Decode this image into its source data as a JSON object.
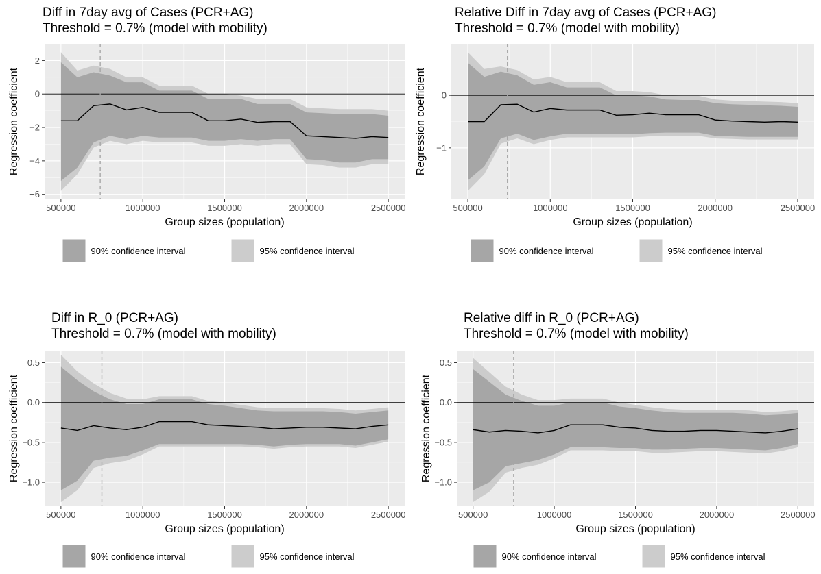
{
  "legend_labels": [
    "90% confidence interval",
    "95% confidence interval"
  ],
  "colors": {
    "panel_bg": "#ebebeb",
    "grid_major": "#ffffff",
    "ci95": "#cccccc",
    "ci90": "#a6a6a6",
    "line": "#000000",
    "zero_line": "#000000",
    "threshold_line": "#a6a6a6",
    "axis_text": "#4d4d4d"
  },
  "chart_data": [
    {
      "type": "line",
      "title": [
        "Diff in 7day avg of Cases (PCR+AG)",
        "Threshold = 0.7% (model with mobility)"
      ],
      "xlabel": "Group sizes (population)",
      "ylabel": "Regression coefficient",
      "x": [
        500000,
        600000,
        700000,
        800000,
        900000,
        1000000,
        1100000,
        1200000,
        1300000,
        1400000,
        1500000,
        1600000,
        1700000,
        1800000,
        1900000,
        2000000,
        2100000,
        2200000,
        2300000,
        2400000,
        2500000
      ],
      "series": [
        {
          "name": "estimate",
          "values": [
            -1.6,
            -1.6,
            -0.7,
            -0.6,
            -0.95,
            -0.8,
            -1.1,
            -1.1,
            -1.1,
            -1.6,
            -1.6,
            -1.5,
            -1.7,
            -1.65,
            -1.65,
            -2.5,
            -2.55,
            -2.6,
            -2.65,
            -2.55,
            -2.6
          ]
        },
        {
          "name": "ci90_low",
          "values": [
            -5.2,
            -4.4,
            -2.9,
            -2.5,
            -2.7,
            -2.5,
            -2.6,
            -2.6,
            -2.6,
            -2.8,
            -2.8,
            -2.7,
            -2.8,
            -2.7,
            -2.7,
            -3.9,
            -3.95,
            -4.1,
            -4.1,
            -3.9,
            -3.9
          ]
        },
        {
          "name": "ci90_high",
          "values": [
            1.9,
            1.0,
            1.3,
            1.1,
            0.7,
            0.7,
            0.2,
            0.2,
            0.2,
            -0.3,
            -0.3,
            -0.3,
            -0.6,
            -0.6,
            -0.6,
            -1.1,
            -1.15,
            -1.2,
            -1.2,
            -1.2,
            -1.3
          ]
        },
        {
          "name": "ci95_low",
          "values": [
            -5.8,
            -4.8,
            -3.2,
            -2.8,
            -3.0,
            -2.8,
            -2.9,
            -2.9,
            -2.9,
            -3.1,
            -3.1,
            -3.0,
            -3.1,
            -3.0,
            -3.0,
            -4.2,
            -4.25,
            -4.4,
            -4.4,
            -4.2,
            -4.2
          ]
        },
        {
          "name": "ci95_high",
          "values": [
            2.5,
            1.4,
            1.7,
            1.5,
            1.0,
            1.0,
            0.5,
            0.5,
            0.5,
            0.0,
            0.0,
            -0.1,
            -0.3,
            -0.3,
            -0.3,
            -0.8,
            -0.85,
            -0.9,
            -0.9,
            -0.9,
            -1.0
          ]
        }
      ],
      "xlim": [
        400000,
        2600000
      ],
      "ylim": [
        -6.3,
        3.0
      ],
      "xticks": [
        500000,
        1000000,
        1500000,
        2000000,
        2500000
      ],
      "xtick_labels": [
        "500000",
        "1000000",
        "1500000",
        "2000000",
        "2500000"
      ],
      "yticks": [
        -6,
        -4,
        -2,
        0,
        2
      ],
      "ytick_labels": [
        "-6",
        "-4",
        "-2",
        "0",
        "2"
      ],
      "threshold_x": 740000,
      "zero_y": 0
    },
    {
      "type": "line",
      "title": [
        "Relative Diff in 7day avg of Cases (PCR+AG)",
        "Threshold = 0.7% (model with mobility)"
      ],
      "xlabel": "Group sizes (population)",
      "ylabel": "Regression coefficient",
      "x": [
        500000,
        600000,
        700000,
        800000,
        900000,
        1000000,
        1100000,
        1200000,
        1300000,
        1400000,
        1500000,
        1600000,
        1700000,
        1800000,
        1900000,
        2000000,
        2100000,
        2200000,
        2300000,
        2400000,
        2500000
      ],
      "series": [
        {
          "name": "estimate",
          "values": [
            -0.5,
            -0.5,
            -0.18,
            -0.17,
            -0.32,
            -0.25,
            -0.28,
            -0.28,
            -0.28,
            -0.38,
            -0.37,
            -0.34,
            -0.37,
            -0.37,
            -0.37,
            -0.47,
            -0.49,
            -0.5,
            -0.51,
            -0.5,
            -0.51
          ]
        },
        {
          "name": "ci90_low",
          "values": [
            -1.62,
            -1.35,
            -0.82,
            -0.73,
            -0.85,
            -0.78,
            -0.73,
            -0.73,
            -0.73,
            -0.74,
            -0.74,
            -0.72,
            -0.71,
            -0.71,
            -0.71,
            -0.77,
            -0.78,
            -0.79,
            -0.79,
            -0.79,
            -0.79
          ]
        },
        {
          "name": "ci90_high",
          "values": [
            0.62,
            0.35,
            0.45,
            0.38,
            0.2,
            0.25,
            0.15,
            0.15,
            0.15,
            0.0,
            0.0,
            -0.02,
            -0.08,
            -0.09,
            -0.09,
            -0.15,
            -0.17,
            -0.18,
            -0.19,
            -0.2,
            -0.22
          ]
        },
        {
          "name": "ci95_low",
          "values": [
            -1.82,
            -1.5,
            -0.92,
            -0.82,
            -0.93,
            -0.85,
            -0.8,
            -0.8,
            -0.8,
            -0.8,
            -0.8,
            -0.78,
            -0.77,
            -0.77,
            -0.77,
            -0.82,
            -0.83,
            -0.84,
            -0.84,
            -0.84,
            -0.84
          ]
        },
        {
          "name": "ci95_high",
          "values": [
            0.82,
            0.5,
            0.55,
            0.48,
            0.3,
            0.35,
            0.25,
            0.25,
            0.25,
            0.08,
            0.08,
            0.06,
            0.0,
            -0.01,
            -0.01,
            -0.08,
            -0.1,
            -0.11,
            -0.12,
            -0.13,
            -0.15
          ]
        }
      ],
      "xlim": [
        400000,
        2600000
      ],
      "ylim": [
        -1.98,
        0.98
      ],
      "xticks": [
        500000,
        1000000,
        1500000,
        2000000,
        2500000
      ],
      "xtick_labels": [
        "500000",
        "1000000",
        "1500000",
        "2000000",
        "2500000"
      ],
      "yticks": [
        -1,
        0
      ],
      "ytick_labels": [
        "-1",
        "0"
      ],
      "threshold_x": 740000,
      "zero_y": 0
    },
    {
      "type": "line",
      "title": [
        "Diff in R_0 (PCR+AG)",
        "Threshold = 0.7% (model with mobility)"
      ],
      "xlabel": "Group sizes (population)",
      "ylabel": "Regression coefficient",
      "x": [
        500000,
        600000,
        700000,
        800000,
        900000,
        1000000,
        1100000,
        1200000,
        1300000,
        1400000,
        1500000,
        1600000,
        1700000,
        1800000,
        1900000,
        2000000,
        2100000,
        2200000,
        2300000,
        2400000,
        2500000
      ],
      "series": [
        {
          "name": "estimate",
          "values": [
            -0.32,
            -0.35,
            -0.29,
            -0.32,
            -0.34,
            -0.31,
            -0.24,
            -0.24,
            -0.24,
            -0.28,
            -0.29,
            -0.3,
            -0.31,
            -0.33,
            -0.32,
            -0.31,
            -0.31,
            -0.32,
            -0.33,
            -0.3,
            -0.28
          ]
        },
        {
          "name": "ci90_low",
          "values": [
            -1.1,
            -0.98,
            -0.73,
            -0.69,
            -0.67,
            -0.6,
            -0.52,
            -0.52,
            -0.52,
            -0.52,
            -0.52,
            -0.52,
            -0.53,
            -0.55,
            -0.53,
            -0.52,
            -0.52,
            -0.52,
            -0.54,
            -0.5,
            -0.46
          ]
        },
        {
          "name": "ci90_high",
          "values": [
            0.45,
            0.28,
            0.14,
            0.04,
            -0.02,
            -0.02,
            0.04,
            0.04,
            0.04,
            -0.02,
            -0.04,
            -0.07,
            -0.1,
            -0.11,
            -0.11,
            -0.11,
            -0.11,
            -0.12,
            -0.14,
            -0.12,
            -0.1
          ]
        },
        {
          "name": "ci95_low",
          "values": [
            -1.25,
            -1.1,
            -0.82,
            -0.76,
            -0.73,
            -0.65,
            -0.55,
            -0.55,
            -0.55,
            -0.55,
            -0.55,
            -0.55,
            -0.56,
            -0.58,
            -0.56,
            -0.55,
            -0.55,
            -0.55,
            -0.57,
            -0.53,
            -0.49
          ]
        },
        {
          "name": "ci95_high",
          "values": [
            0.6,
            0.39,
            0.24,
            0.12,
            0.05,
            0.04,
            0.08,
            0.08,
            0.08,
            0.02,
            0.0,
            -0.03,
            -0.06,
            -0.07,
            -0.07,
            -0.07,
            -0.07,
            -0.08,
            -0.1,
            -0.08,
            -0.06
          ]
        }
      ],
      "xlim": [
        400000,
        2600000
      ],
      "ylim": [
        -1.3,
        0.65
      ],
      "xticks": [
        500000,
        1000000,
        1500000,
        2000000,
        2500000
      ],
      "xtick_labels": [
        "500000",
        "1000000",
        "1500000",
        "2000000",
        "2500000"
      ],
      "yticks": [
        -1.0,
        -0.5,
        0.0,
        0.5
      ],
      "ytick_labels": [
        "-1.0",
        "-0.5",
        "0.0",
        "0.5"
      ],
      "threshold_x": 750000,
      "zero_y": 0
    },
    {
      "type": "line",
      "title": [
        "Relative diff in R_0 (PCR+AG)",
        "Threshold = 0.7% (model with mobility)"
      ],
      "xlabel": "Group sizes (population)",
      "ylabel": "Regression coefficient",
      "x": [
        500000,
        600000,
        700000,
        800000,
        900000,
        1000000,
        1100000,
        1200000,
        1300000,
        1400000,
        1500000,
        1600000,
        1700000,
        1800000,
        1900000,
        2000000,
        2100000,
        2200000,
        2300000,
        2400000,
        2500000
      ],
      "series": [
        {
          "name": "estimate",
          "values": [
            -0.34,
            -0.37,
            -0.35,
            -0.36,
            -0.38,
            -0.35,
            -0.28,
            -0.28,
            -0.28,
            -0.31,
            -0.32,
            -0.35,
            -0.36,
            -0.36,
            -0.35,
            -0.35,
            -0.36,
            -0.37,
            -0.38,
            -0.36,
            -0.33
          ]
        },
        {
          "name": "ci90_low",
          "values": [
            -1.1,
            -1.0,
            -0.8,
            -0.76,
            -0.72,
            -0.65,
            -0.56,
            -0.56,
            -0.56,
            -0.57,
            -0.57,
            -0.59,
            -0.59,
            -0.58,
            -0.57,
            -0.57,
            -0.58,
            -0.59,
            -0.6,
            -0.57,
            -0.52
          ]
        },
        {
          "name": "ci90_high",
          "values": [
            0.42,
            0.26,
            0.1,
            0.02,
            -0.04,
            -0.04,
            0.0,
            0.0,
            0.0,
            -0.05,
            -0.07,
            -0.1,
            -0.12,
            -0.13,
            -0.13,
            -0.13,
            -0.13,
            -0.14,
            -0.16,
            -0.15,
            -0.13
          ]
        },
        {
          "name": "ci95_low",
          "values": [
            -1.25,
            -1.12,
            -0.88,
            -0.82,
            -0.78,
            -0.7,
            -0.6,
            -0.6,
            -0.6,
            -0.61,
            -0.61,
            -0.63,
            -0.63,
            -0.62,
            -0.61,
            -0.61,
            -0.62,
            -0.63,
            -0.64,
            -0.61,
            -0.56
          ]
        },
        {
          "name": "ci95_high",
          "values": [
            0.56,
            0.38,
            0.2,
            0.1,
            0.03,
            0.03,
            0.05,
            0.05,
            0.05,
            0.0,
            -0.03,
            -0.06,
            -0.08,
            -0.09,
            -0.09,
            -0.09,
            -0.09,
            -0.1,
            -0.12,
            -0.11,
            -0.09
          ]
        }
      ],
      "xlim": [
        400000,
        2600000
      ],
      "ylim": [
        -1.3,
        0.65
      ],
      "xticks": [
        500000,
        1000000,
        1500000,
        2000000,
        2500000
      ],
      "xtick_labels": [
        "500000",
        "1000000",
        "1500000",
        "2000000",
        "2500000"
      ],
      "yticks": [
        -1.0,
        -0.5,
        0.0,
        0.5
      ],
      "ytick_labels": [
        "-1.0",
        "-0.5",
        "0.0",
        "0.5"
      ],
      "threshold_x": 750000,
      "zero_y": 0
    }
  ]
}
